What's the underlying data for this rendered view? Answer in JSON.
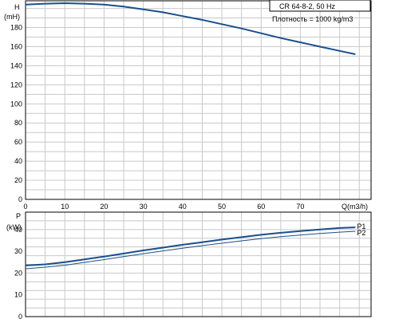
{
  "colors": {
    "grid": "#c8c8c8",
    "axis": "#000000",
    "curve_main": "#1a4f8b",
    "curve_secondary": "#1a4f8b"
  },
  "info_box": {
    "model": "CR 64-8-2, 50 Hz",
    "density": "Плотность = 1000 kg/m3"
  },
  "chart_data": [
    {
      "type": "line",
      "ylabel": "H",
      "yunit": "(mH)",
      "xlabel": "Q(m3/h)",
      "xlim": [
        0,
        88
      ],
      "ylim": [
        0,
        208
      ],
      "xticks": [
        0,
        10,
        20,
        30,
        40,
        50,
        60,
        70
      ],
      "yticks": [
        0,
        20,
        40,
        60,
        80,
        100,
        120,
        140,
        160,
        180
      ],
      "grid": true,
      "series": [
        {
          "x": [
            0,
            5,
            10,
            15,
            20,
            25,
            30,
            35,
            40,
            45,
            50,
            55,
            60,
            65,
            70,
            75,
            80,
            84
          ],
          "y": [
            204,
            205,
            205.5,
            205,
            204,
            202,
            199,
            196,
            192,
            188,
            183.5,
            179,
            174,
            169,
            164.5,
            160,
            155.5,
            152
          ]
        }
      ]
    },
    {
      "type": "line",
      "ylabel": "P",
      "yunit": "(kW)",
      "xlim": [
        0,
        88
      ],
      "ylim": [
        0,
        48
      ],
      "yticks": [
        0,
        10,
        20,
        30,
        40
      ],
      "grid": true,
      "series": [
        {
          "name": "P1",
          "x": [
            0,
            5,
            10,
            15,
            20,
            25,
            30,
            35,
            40,
            45,
            50,
            55,
            60,
            65,
            70,
            75,
            80,
            84
          ],
          "y": [
            23.5,
            24,
            25,
            26.3,
            27.6,
            29,
            30.4,
            31.7,
            33,
            34.2,
            35.4,
            36.5,
            37.6,
            38.5,
            39.3,
            40,
            40.7,
            41
          ]
        },
        {
          "name": "P2",
          "x": [
            0,
            5,
            10,
            15,
            20,
            25,
            30,
            35,
            40,
            45,
            50,
            55,
            60,
            65,
            70,
            75,
            80,
            84
          ],
          "y": [
            22,
            22.7,
            23.6,
            24.9,
            26.2,
            27.6,
            28.9,
            30.2,
            31.4,
            32.6,
            33.7,
            34.8,
            35.8,
            36.7,
            37.5,
            38.2,
            38.8,
            39.2
          ]
        }
      ]
    }
  ]
}
